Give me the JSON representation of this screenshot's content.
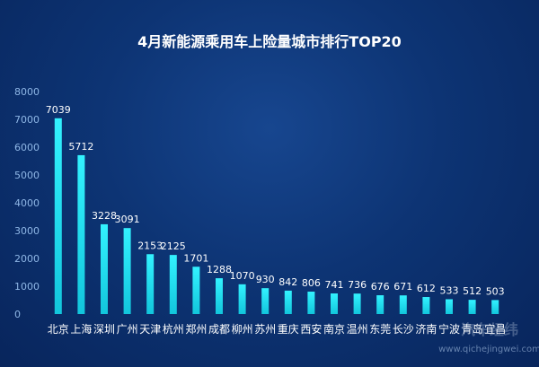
{
  "chart_data": {
    "type": "bar",
    "title": "4月新能源乘用车上险量城市排行TOP20",
    "categories": [
      "北京",
      "上海",
      "深圳",
      "广州",
      "天津",
      "杭州",
      "郑州",
      "成都",
      "柳州",
      "苏州",
      "重庆",
      "西安",
      "南京",
      "温州",
      "东莞",
      "长沙",
      "济南",
      "宁波",
      "青岛",
      "宜昌"
    ],
    "values": [
      7039,
      5712,
      3228,
      3091,
      2153,
      2125,
      1701,
      1288,
      1070,
      930,
      842,
      806,
      741,
      736,
      676,
      671,
      612,
      533,
      512,
      503
    ],
    "ylim": [
      0,
      8000
    ],
    "yticks": [
      0,
      1000,
      2000,
      3000,
      4000,
      5000,
      6000,
      7000,
      8000
    ],
    "grid": false,
    "bar_color": "#1fe3f0"
  },
  "watermark": {
    "site": "www.qichejingwei.com",
    "logo_text": "汽车经纬"
  }
}
